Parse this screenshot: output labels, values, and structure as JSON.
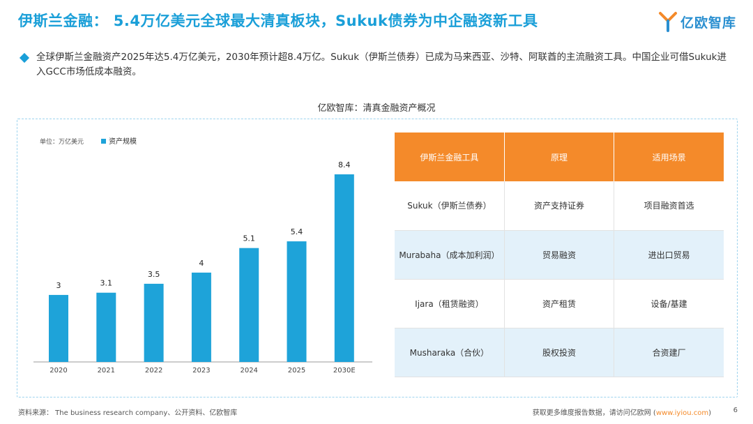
{
  "header": {
    "title": "伊斯兰金融： 5.4万亿美元全球最大清真板块，Sukuk债券为中企融资新工具",
    "logo_text": "亿欧智库"
  },
  "summary": {
    "text": "全球伊斯兰金融资产2025年达5.4万亿美元，2030年预计超8.4万亿。Sukuk（伊斯兰债券）已成为马来西亚、沙特、阿联酋的主流融资工具。中国企业可借Sukuk进入GCC市场低成本融资。"
  },
  "section": {
    "title": "亿欧智库：清真金融资产概况"
  },
  "chart_data": {
    "type": "bar",
    "title": "",
    "unit_label": "单位：万亿美元",
    "legend": "资产规模",
    "categories": [
      "2020",
      "2021",
      "2022",
      "2023",
      "2024",
      "2025",
      "2030E"
    ],
    "series": [
      {
        "name": "资产规模",
        "values": [
          3,
          3.1,
          3.5,
          4,
          5.1,
          5.4,
          8.4
        ],
        "labels": [
          "3",
          "3.1",
          "3.5",
          "4",
          "5.1",
          "5.4",
          "8.4"
        ]
      }
    ],
    "xlabel": "",
    "ylabel": "",
    "ylim": [
      0,
      8.4
    ],
    "color": "#1ea3d9"
  },
  "table": {
    "headers": [
      "伊斯兰金融工具",
      "原理",
      "适用场景"
    ],
    "rows": [
      [
        "Sukuk（伊斯兰债券）",
        "资产支持证券",
        "项目融资首选"
      ],
      [
        "Murabaha（成本加利润）",
        "贸易融资",
        "进出口贸易"
      ],
      [
        "Ijara（租赁融资）",
        "资产租赁",
        "设备/基建"
      ],
      [
        "Musharaka（合伙）",
        "股权投资",
        "合资建厂"
      ]
    ]
  },
  "footer": {
    "source": "资料来源：  The business research company、公开资料、亿欧智库",
    "more_prefix": "获取更多维度报告数据，请访问亿欧网 (",
    "more_link": "www.iyiou.com",
    "more_suffix": ")",
    "page": "6"
  },
  "colors": {
    "accent": "#1a9fd8",
    "header_orange": "#f48a2a",
    "row_alt": "#e3f1fa"
  }
}
